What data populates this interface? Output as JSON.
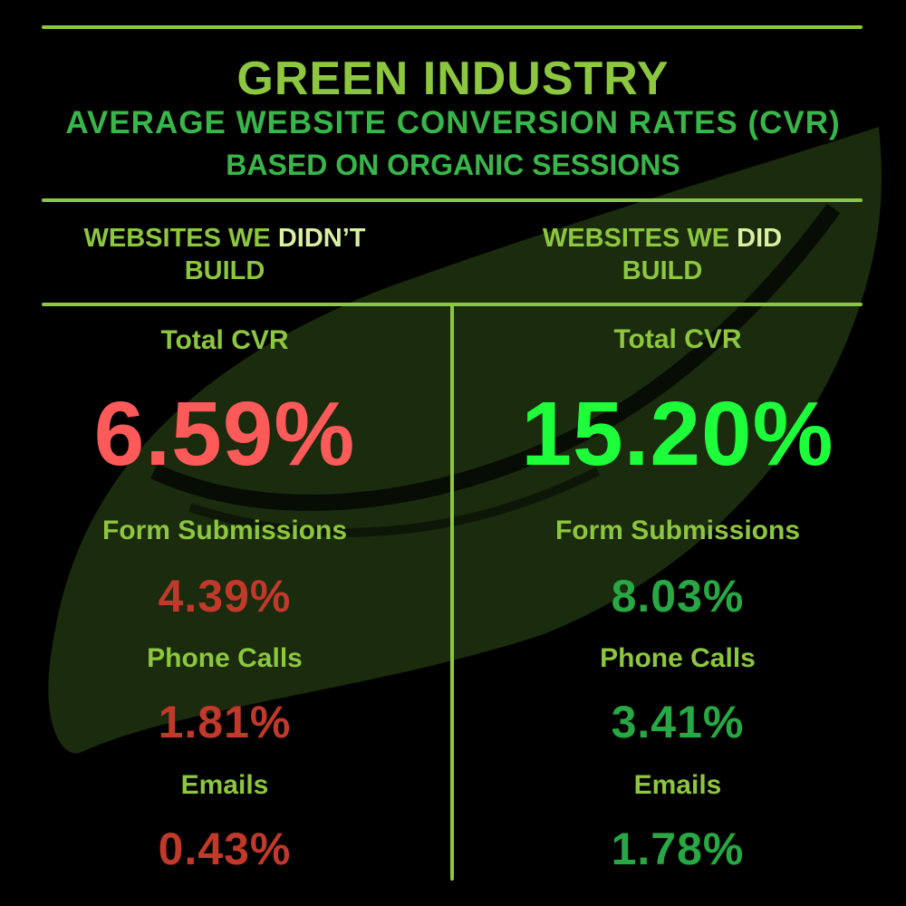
{
  "colors": {
    "background": "#000000",
    "rule": "#8dc63f",
    "title": "#8dc63f",
    "subtitle": "#39b54a",
    "label": "#8dc63f",
    "highlight": "#d9f0a3",
    "left_big": "#ff5a5a",
    "left_small": "#c0392b",
    "right_big": "#1eff3c",
    "right_small": "#27a844",
    "leaf": "#2f4f1a"
  },
  "header": {
    "title": "GREEN INDUSTRY",
    "subtitle": "AVERAGE WEBSITE CONVERSION RATES (CVR)",
    "subtitle2": "BASED ON ORGANIC SESSIONS"
  },
  "columns": {
    "left": {
      "heading_pre": "WEBSITES WE ",
      "heading_highlight": "DIDN’T",
      "heading_post": "BUILD"
    },
    "right": {
      "heading_pre": "WEBSITES WE ",
      "heading_highlight": "DID",
      "heading_post": "BUILD"
    }
  },
  "chart_data": {
    "type": "table",
    "title": "GREEN INDUSTRY",
    "subtitle": "AVERAGE WEBSITE CONVERSION RATES (CVR)",
    "note": "BASED ON ORGANIC SESSIONS",
    "columns": [
      "WEBSITES WE DIDN’T BUILD",
      "WEBSITES WE DID BUILD"
    ],
    "rows": [
      {
        "metric": "Total CVR",
        "left": "6.59%",
        "right": "15.20%"
      },
      {
        "metric": "Form Submissions",
        "left": "4.39%",
        "right": "8.03%"
      },
      {
        "metric": "Phone Calls",
        "left": "1.81%",
        "right": "3.41%"
      },
      {
        "metric": "Emails",
        "left": "0.43%",
        "right": "1.78%"
      }
    ]
  }
}
